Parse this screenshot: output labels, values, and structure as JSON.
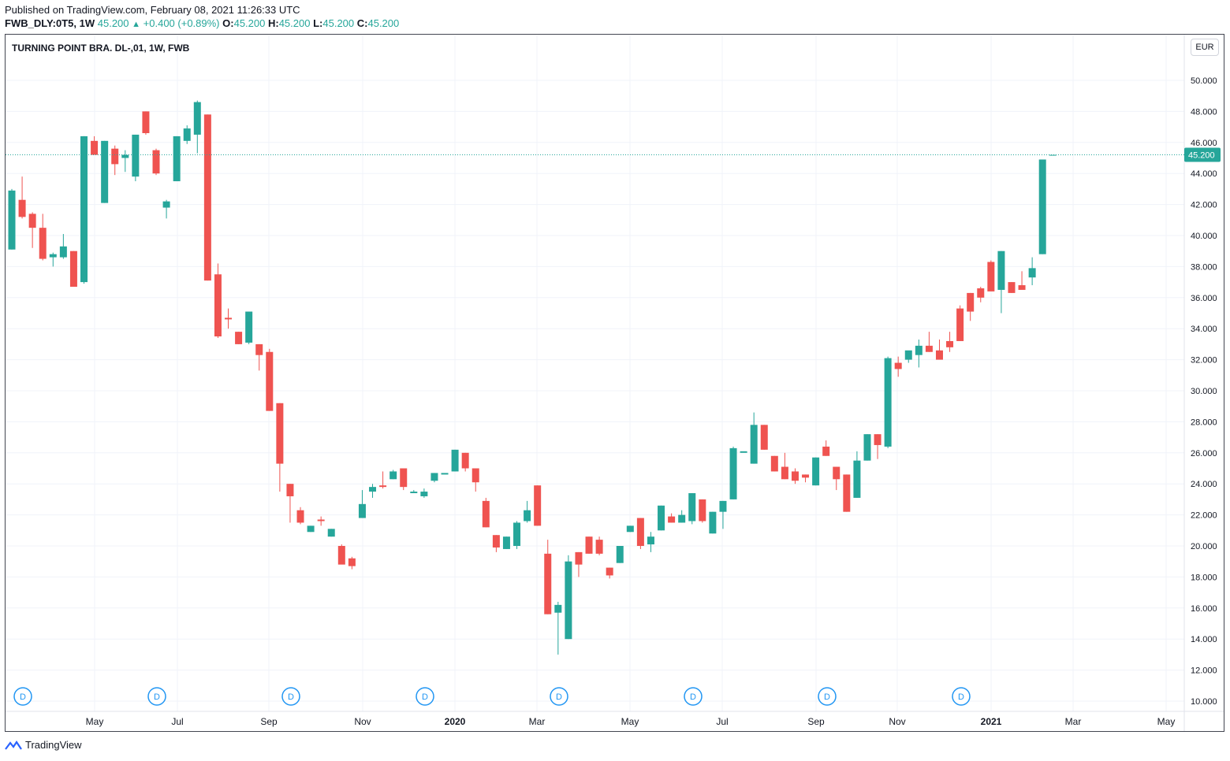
{
  "header": {
    "published": "Published on TradingView.com, February 08, 2021 11:26:33 UTC",
    "symbol": "FWB_DLY:0T5, 1W",
    "last": "45.200",
    "change": "+0.400 (+0.89%)",
    "o_label": "O:",
    "o_value": "45.200",
    "h_label": "H:",
    "h_value": "45.200",
    "l_label": "L:",
    "l_value": "45.200",
    "c_label": "C:",
    "c_value": "45.200"
  },
  "chart_title": "TURNING POINT BRA. DL-,01, 1W, FWB",
  "currency_button": "EUR",
  "footer": {
    "brand": "TradingView"
  },
  "colors": {
    "up": "#26a69a",
    "down": "#ef5350",
    "price_tag": "#26a69a",
    "grid": "#f0f3fa",
    "dividend": "#2196f3"
  },
  "chart_data": {
    "type": "candlestick",
    "y_axis": {
      "min": 10,
      "max": 50,
      "ticks": [
        "10.000",
        "12.000",
        "14.000",
        "16.000",
        "18.000",
        "20.000",
        "22.000",
        "24.000",
        "26.000",
        "28.000",
        "30.000",
        "32.000",
        "34.000",
        "36.000",
        "38.000",
        "40.000",
        "42.000",
        "44.000",
        "46.000",
        "48.000",
        "50.000"
      ]
    },
    "x_ticks": [
      "May",
      "Jul",
      "Sep",
      "Nov",
      "2020",
      "Mar",
      "May",
      "Jul",
      "Sep",
      "Nov",
      "2021",
      "Mar",
      "May"
    ],
    "last_price_label": "45.200",
    "last_price": 45.2,
    "dividend_marker": "D",
    "dividend_count": 8,
    "grid": true,
    "candles": [
      [
        39.1,
        43.0,
        39.1,
        42.9
      ],
      [
        42.3,
        43.8,
        41.1,
        41.2
      ],
      [
        41.4,
        41.5,
        39.2,
        40.5
      ],
      [
        40.5,
        41.4,
        38.4,
        38.5
      ],
      [
        38.6,
        38.9,
        38.0,
        38.8
      ],
      [
        38.6,
        40.1,
        38.5,
        39.3
      ],
      [
        39.0,
        39.0,
        36.7,
        36.7
      ],
      [
        37.0,
        46.4,
        36.9,
        46.4
      ],
      [
        46.1,
        46.4,
        45.3,
        45.2
      ],
      [
        42.1,
        46.1,
        42.1,
        46.1
      ],
      [
        45.6,
        45.8,
        43.9,
        44.6
      ],
      [
        45.0,
        45.5,
        44.1,
        45.2
      ],
      [
        43.8,
        46.5,
        43.5,
        46.5
      ],
      [
        48.0,
        48.0,
        46.5,
        46.6
      ],
      [
        45.5,
        45.6,
        43.9,
        44.0
      ],
      [
        41.8,
        42.3,
        41.1,
        42.2
      ],
      [
        43.5,
        46.4,
        43.5,
        46.4
      ],
      [
        46.1,
        47.1,
        45.9,
        46.9
      ],
      [
        46.5,
        48.7,
        45.3,
        48.6
      ],
      [
        47.8,
        47.8,
        37.1,
        37.1
      ],
      [
        37.5,
        38.2,
        33.4,
        33.5
      ],
      [
        34.7,
        35.3,
        34.0,
        34.6
      ],
      [
        33.8,
        33.8,
        33.0,
        33.0
      ],
      [
        33.1,
        35.1,
        33.0,
        35.1
      ],
      [
        33.0,
        33.0,
        31.3,
        32.3
      ],
      [
        32.5,
        32.7,
        28.7,
        28.7
      ],
      [
        29.2,
        29.2,
        23.5,
        25.3
      ],
      [
        24.0,
        24.0,
        21.5,
        23.2
      ],
      [
        22.3,
        22.5,
        21.4,
        21.5
      ],
      [
        20.9,
        21.3,
        20.9,
        21.3
      ],
      [
        21.7,
        21.9,
        21.3,
        21.6
      ],
      [
        20.6,
        21.1,
        20.6,
        21.1
      ],
      [
        20.0,
        20.1,
        19.0,
        18.8
      ],
      [
        19.2,
        19.3,
        18.5,
        18.7
      ],
      [
        21.8,
        23.6,
        21.8,
        22.7
      ],
      [
        23.5,
        24.0,
        23.1,
        23.8
      ],
      [
        23.9,
        24.8,
        23.7,
        23.8
      ],
      [
        24.3,
        24.9,
        24.3,
        24.8
      ],
      [
        25.0,
        25.0,
        23.6,
        23.8
      ],
      [
        23.4,
        23.6,
        23.4,
        23.5
      ],
      [
        23.2,
        23.7,
        23.1,
        23.5
      ],
      [
        24.2,
        24.7,
        24.1,
        24.7
      ],
      [
        24.6,
        24.6,
        24.6,
        24.7
      ],
      [
        24.8,
        26.2,
        24.8,
        26.2
      ],
      [
        26.0,
        26.0,
        24.8,
        25.0
      ],
      [
        25.0,
        25.0,
        23.5,
        24.1
      ],
      [
        22.9,
        23.1,
        21.2,
        21.2
      ],
      [
        20.7,
        20.7,
        19.6,
        19.9
      ],
      [
        19.8,
        20.6,
        19.8,
        20.6
      ],
      [
        20.0,
        21.6,
        19.8,
        21.5
      ],
      [
        21.6,
        22.9,
        21.5,
        22.3
      ],
      [
        23.9,
        23.9,
        21.3,
        21.3
      ],
      [
        19.5,
        20.4,
        15.6,
        15.6
      ],
      [
        15.7,
        16.4,
        13.0,
        16.2
      ],
      [
        14.0,
        19.4,
        14.0,
        19.0
      ],
      [
        19.6,
        19.6,
        18.0,
        18.8
      ],
      [
        20.6,
        20.6,
        19.5,
        19.5
      ],
      [
        20.4,
        20.6,
        19.4,
        19.5
      ],
      [
        18.6,
        18.6,
        17.9,
        18.1
      ],
      [
        18.9,
        20.0,
        18.9,
        20.0
      ],
      [
        20.9,
        21.3,
        20.9,
        21.3
      ],
      [
        21.8,
        21.8,
        19.8,
        20.0
      ],
      [
        20.1,
        20.9,
        19.6,
        20.6
      ],
      [
        21.0,
        22.6,
        21.0,
        22.6
      ],
      [
        21.9,
        22.1,
        21.5,
        21.5
      ],
      [
        21.5,
        22.3,
        21.5,
        22.0
      ],
      [
        21.6,
        23.4,
        21.4,
        23.4
      ],
      [
        23.0,
        23.0,
        21.5,
        21.6
      ],
      [
        20.8,
        22.2,
        20.8,
        22.2
      ],
      [
        22.2,
        22.9,
        21.1,
        22.9
      ],
      [
        23.0,
        26.4,
        23.0,
        26.3
      ],
      [
        26.0,
        26.0,
        26.0,
        26.1
      ],
      [
        25.3,
        28.6,
        25.3,
        27.8
      ],
      [
        27.8,
        27.8,
        26.2,
        26.2
      ],
      [
        25.8,
        25.8,
        24.8,
        24.8
      ],
      [
        25.1,
        26.0,
        24.3,
        24.3
      ],
      [
        24.8,
        25.0,
        24.0,
        24.2
      ],
      [
        24.6,
        24.6,
        24.1,
        24.4
      ],
      [
        23.9,
        25.7,
        23.9,
        25.7
      ],
      [
        26.4,
        26.8,
        25.8,
        25.8
      ],
      [
        25.1,
        25.1,
        23.6,
        24.3
      ],
      [
        24.6,
        24.6,
        22.2,
        22.2
      ],
      [
        23.1,
        26.1,
        23.1,
        25.5
      ],
      [
        25.5,
        27.2,
        25.5,
        27.2
      ],
      [
        27.2,
        27.2,
        25.6,
        26.5
      ],
      [
        26.4,
        32.2,
        26.3,
        32.1
      ],
      [
        31.8,
        32.2,
        30.9,
        31.4
      ],
      [
        32.0,
        32.5,
        31.8,
        32.6
      ],
      [
        32.3,
        33.3,
        31.5,
        32.9
      ],
      [
        32.9,
        33.8,
        32.5,
        32.5
      ],
      [
        32.6,
        33.3,
        32.1,
        32.0
      ],
      [
        33.2,
        33.8,
        32.5,
        32.8
      ],
      [
        35.3,
        35.5,
        33.2,
        33.2
      ],
      [
        36.3,
        36.3,
        34.5,
        35.1
      ],
      [
        36.6,
        36.7,
        35.7,
        36.0
      ],
      [
        38.3,
        38.4,
        36.5,
        36.4
      ],
      [
        36.5,
        39.0,
        35.0,
        39.0
      ],
      [
        37.0,
        37.0,
        36.3,
        36.3
      ],
      [
        36.8,
        37.7,
        36.6,
        36.5
      ],
      [
        37.3,
        38.6,
        36.8,
        37.9
      ],
      [
        38.8,
        44.9,
        38.8,
        44.9
      ],
      [
        45.2,
        45.2,
        45.2,
        45.2
      ]
    ]
  }
}
